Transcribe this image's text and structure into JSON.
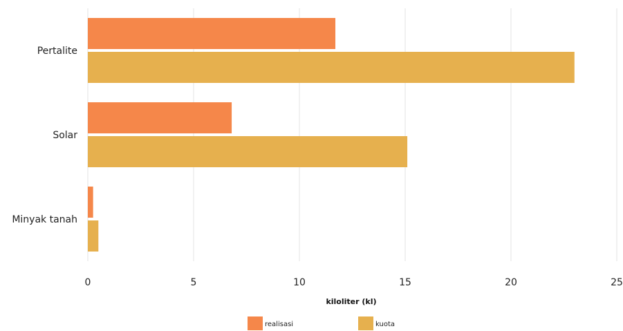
{
  "chart_data": {
    "type": "bar",
    "orientation": "horizontal",
    "categories": [
      "Pertalite",
      "Solar",
      "Minyak tanah"
    ],
    "series": [
      {
        "name": "realisasi",
        "color": "#F5874A",
        "values": [
          11.7,
          6.8,
          0.25
        ]
      },
      {
        "name": "kuota",
        "color": "#E6B04E",
        "values": [
          23.0,
          15.1,
          0.5
        ]
      }
    ],
    "xlabel": "kiloliter (kl)",
    "xlim": [
      0,
      25
    ],
    "xticks": [
      "0",
      "5",
      "10",
      "15",
      "20",
      "25"
    ],
    "grid": true,
    "legend_position": "bottom"
  }
}
